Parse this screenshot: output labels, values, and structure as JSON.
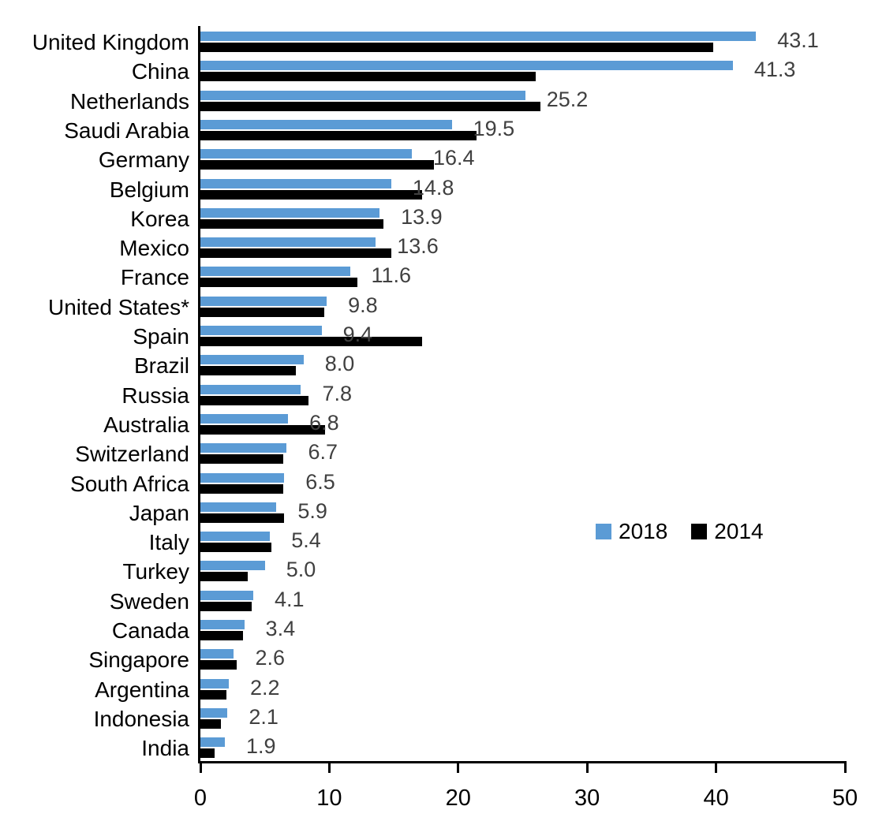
{
  "chart_data": {
    "type": "bar",
    "orientation": "horizontal",
    "title": "",
    "xlabel": "",
    "ylabel": "",
    "xlim": [
      0,
      50
    ],
    "x_ticks": [
      "0",
      "10",
      "20",
      "30",
      "40",
      "50"
    ],
    "grid": false,
    "legend_position": "middle-right",
    "categories": [
      "United Kingdom",
      "China",
      "Netherlands",
      "Saudi Arabia",
      "Germany",
      "Belgium",
      "Korea",
      "Mexico",
      "France",
      "United States*",
      "Spain",
      "Brazil",
      "Russia",
      "Australia",
      "Switzerland",
      "South Africa",
      "Japan",
      "Italy",
      "Turkey",
      "Sweden",
      "Canada",
      "Singapore",
      "Argentina",
      "Indonesia",
      "India"
    ],
    "series": [
      {
        "name": "2018",
        "color": "#5B9BD5",
        "values": [
          43.1,
          41.3,
          25.2,
          19.5,
          16.4,
          14.8,
          13.9,
          13.6,
          11.6,
          9.8,
          9.4,
          8.0,
          7.8,
          6.8,
          6.7,
          6.5,
          5.9,
          5.4,
          5.0,
          4.1,
          3.4,
          2.6,
          2.2,
          2.1,
          1.9
        ]
      },
      {
        "name": "2014",
        "color": "#000000",
        "values": [
          39.8,
          26.0,
          26.4,
          21.4,
          18.1,
          17.2,
          14.2,
          14.8,
          12.2,
          9.6,
          17.2,
          7.4,
          8.4,
          9.7,
          6.4,
          6.4,
          6.5,
          5.5,
          3.7,
          4.0,
          3.3,
          2.8,
          2.0,
          1.6,
          1.1
        ]
      }
    ],
    "value_labels": [
      "43.1",
      "41.3",
      "25.2",
      "19.5",
      "16.4",
      "14.8",
      "13.9",
      "13.6",
      "11.6",
      "9.8",
      "9.4",
      "8.0",
      "7.8",
      "6.8",
      "6.7",
      "6.5",
      "5.9",
      "5.4",
      "5.0",
      "4.1",
      "3.4",
      "2.6",
      "2.2",
      "2.1",
      "1.9"
    ],
    "legend": [
      {
        "label": "2018",
        "color": "#5B9BD5"
      },
      {
        "label": "2014",
        "color": "#000000"
      }
    ]
  },
  "colors": {
    "value_label": "#404040",
    "axis": "#000000",
    "background": "#ffffff"
  }
}
